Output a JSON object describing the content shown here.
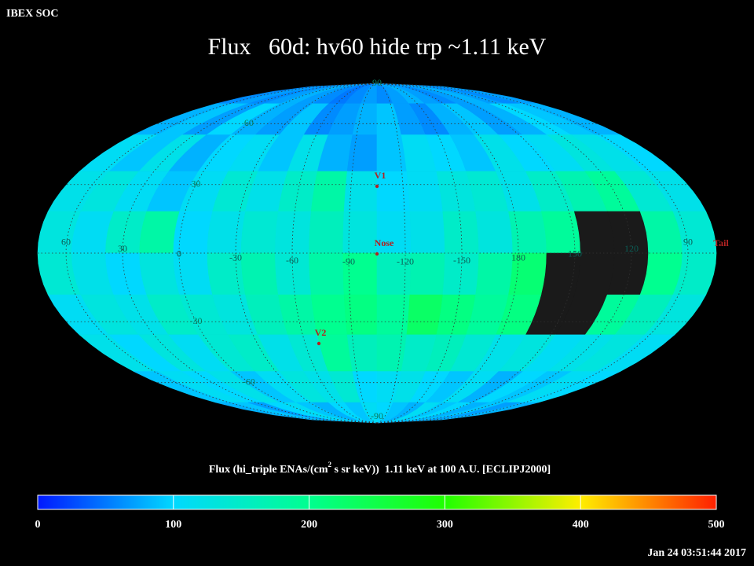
{
  "chart_data": {
    "type": "skymap",
    "source": "IBEX SOC",
    "title": "Flux   60d: hv60 hide trp ~1.11 keV",
    "colorbar_label": [
      "Flux (hi_triple ENAs/(cm",
      "2",
      " s sr keV))  1.11 keV at 100 A.U. [ECLIPJ2000]"
    ],
    "timestamp": "Jan 24 03:51:44 2017",
    "clim": [
      0,
      500
    ],
    "cticks": [
      0,
      100,
      200,
      300,
      400,
      500
    ],
    "colormap": [
      "#0018ff",
      "#00d8ff",
      "#00ff90",
      "#20ff00",
      "#ffee00",
      "#ff2000"
    ],
    "lon_labels": [
      60,
      30,
      0,
      -30,
      -60,
      -90,
      -120,
      -150,
      180,
      150,
      120,
      90
    ],
    "lat_labels": [
      90,
      60,
      30,
      -30,
      -60,
      -90
    ],
    "markers": [
      "V1",
      "Nose",
      "V2",
      "Tail"
    ],
    "flux": [
      [
        60,
        70,
        60,
        70,
        80,
        70,
        60,
        50,
        60,
        70,
        60,
        70,
        80,
        70,
        60,
        70,
        80,
        70,
        60,
        70
      ],
      [
        80,
        90,
        70,
        100,
        80,
        70,
        90,
        60,
        70,
        80,
        90,
        70,
        60,
        80,
        90,
        70,
        80,
        100,
        90,
        80
      ],
      [
        110,
        90,
        120,
        80,
        100,
        110,
        90,
        120,
        80,
        70,
        90,
        110,
        100,
        90,
        120,
        100,
        110,
        130,
        120,
        100
      ],
      [
        120,
        130,
        110,
        90,
        110,
        140,
        120,
        150,
        180,
        120,
        100,
        110,
        130,
        140,
        120,
        150,
        170,
        190,
        140,
        120
      ],
      [
        130,
        110,
        150,
        180,
        100,
        120,
        140,
        130,
        160,
        130,
        110,
        120,
        150,
        130,
        170,
        190,
        null,
        null,
        180,
        140
      ],
      [
        140,
        120,
        100,
        130,
        110,
        150,
        170,
        140,
        180,
        200,
        160,
        170,
        150,
        180,
        220,
        null,
        null,
        null,
        200,
        150
      ],
      [
        110,
        130,
        120,
        150,
        140,
        130,
        160,
        180,
        200,
        210,
        190,
        230,
        210,
        190,
        210,
        null,
        null,
        190,
        160,
        130
      ],
      [
        120,
        100,
        130,
        110,
        140,
        150,
        120,
        140,
        190,
        160,
        170,
        150,
        160,
        140,
        120,
        130,
        110,
        120,
        130,
        110
      ],
      [
        90,
        110,
        100,
        120,
        90,
        110,
        130,
        120,
        140,
        100,
        110,
        120,
        100,
        90,
        110,
        80,
        100,
        90,
        110,
        100
      ],
      [
        80,
        90,
        70,
        100,
        110,
        90,
        80,
        100,
        90,
        110,
        100,
        90,
        80,
        110,
        90,
        100,
        80,
        90,
        70,
        80
      ]
    ]
  }
}
